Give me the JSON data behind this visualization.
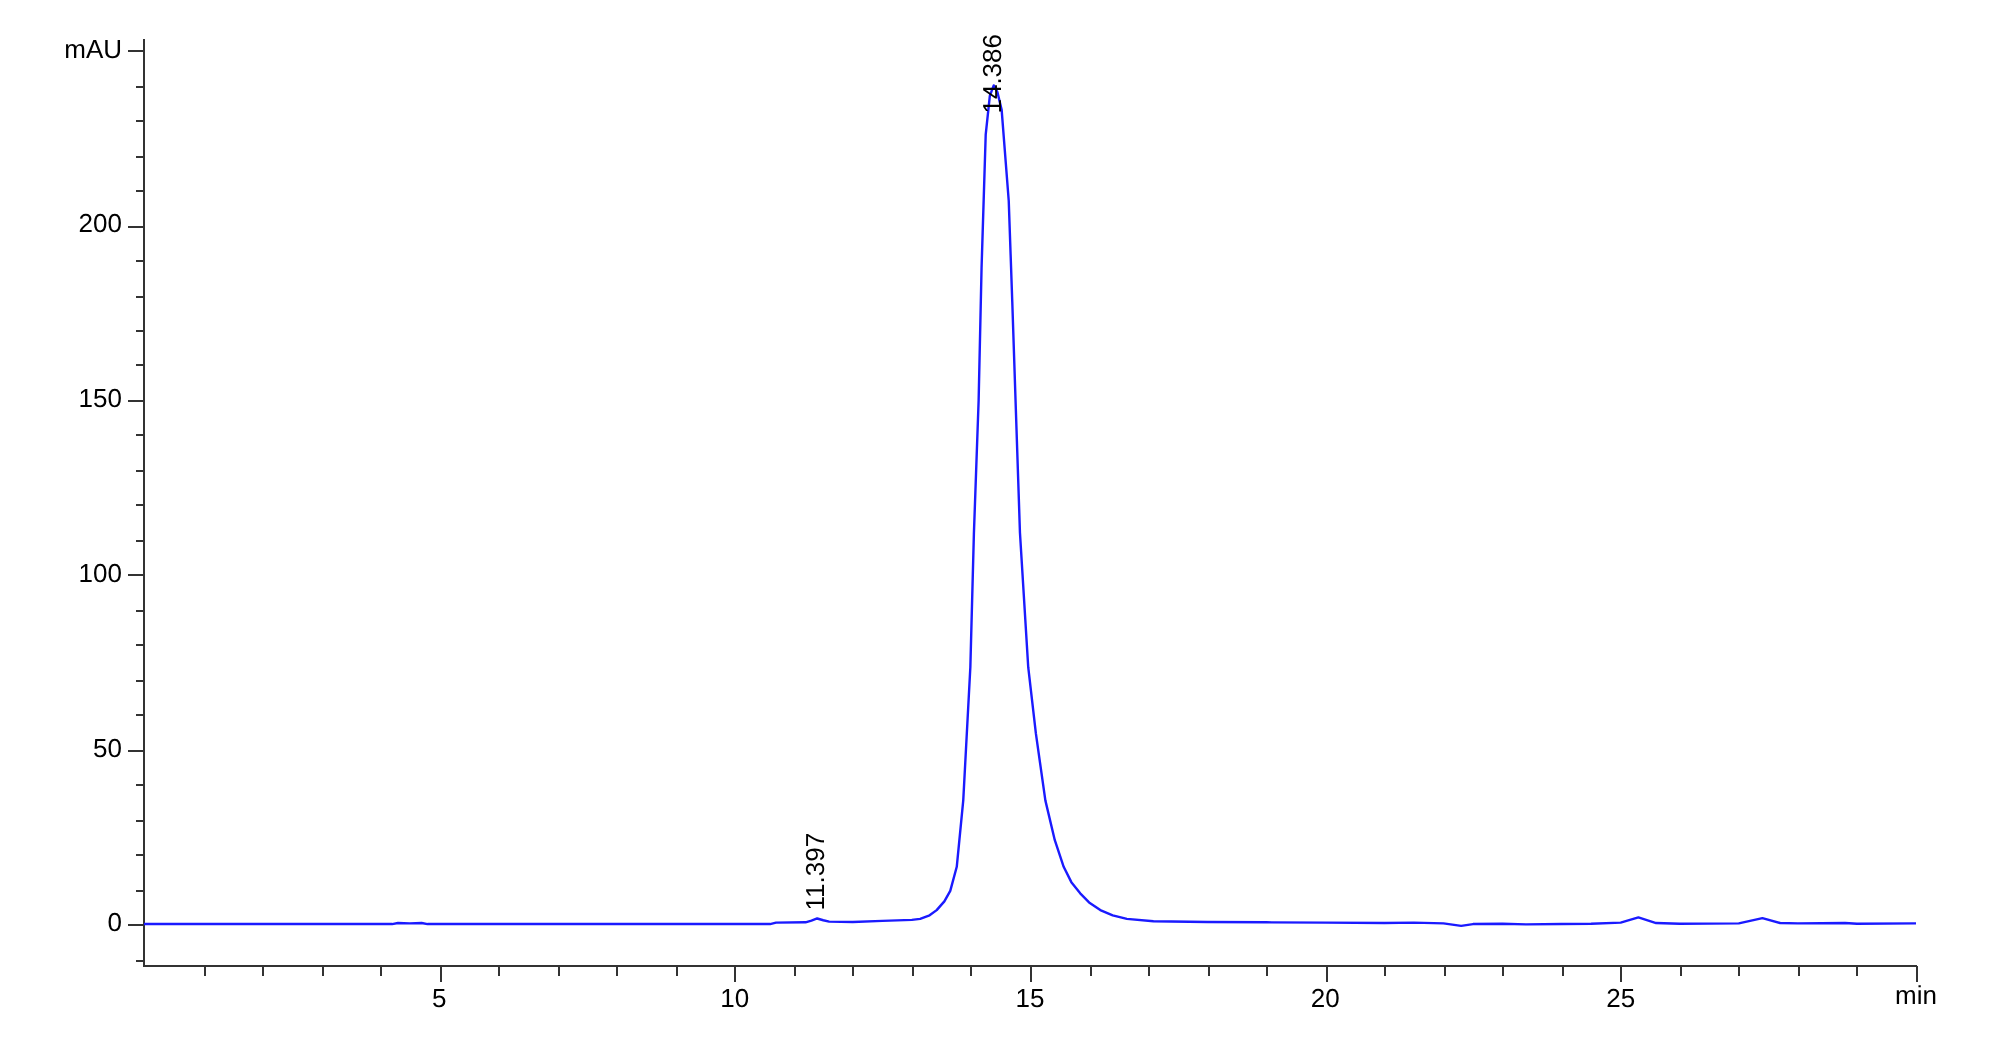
{
  "chart_data": {
    "type": "line",
    "xlabel": "min",
    "ylabel": "mAU",
    "x": [
      0,
      4.2,
      4.3,
      4.5,
      4.7,
      4.8,
      10.6,
      10.7,
      11.2,
      11.3,
      11.397,
      11.5,
      11.6,
      12.0,
      12.5,
      13.0,
      13.14,
      13.3,
      13.42,
      13.55,
      13.65,
      13.76,
      13.87,
      13.99,
      14.05,
      14.13,
      14.18,
      14.25,
      14.32,
      14.386,
      14.45,
      14.52,
      14.64,
      14.7,
      14.755,
      14.83,
      14.97,
      15.1,
      15.26,
      15.42,
      15.57,
      15.7,
      15.85,
      16.0,
      16.19,
      16.4,
      16.64,
      17.09,
      18,
      19,
      20,
      21,
      21.5,
      22.0,
      22.3,
      22.5,
      23.0,
      23.4,
      24.0,
      24.5,
      25.0,
      25.3,
      25.6,
      26.0,
      27.0,
      27.4,
      27.7,
      28.0,
      28.8,
      29.0,
      30.0
    ],
    "values": [
      0,
      0,
      0.3,
      0.2,
      0.3,
      0,
      0,
      0.4,
      0.5,
      1.0,
      1.6,
      1.1,
      0.7,
      0.6,
      0.9,
      1.2,
      1.5,
      2.5,
      4,
      6.5,
      9.5,
      16.4,
      35.4,
      73.5,
      111.6,
      149.7,
      187.8,
      225.9,
      237,
      240,
      238,
      233,
      207,
      178,
      150,
      112,
      73.5,
      54.5,
      35.4,
      24,
      16.4,
      12,
      8.8,
      6.2,
      4,
      2.5,
      1.5,
      0.8,
      0.6,
      0.5,
      0.4,
      0.3,
      0.4,
      0.2,
      -0.5,
      0,
      0.1,
      -0.1,
      0,
      0.1,
      0.4,
      1.9,
      0.3,
      0.1,
      0.2,
      1.7,
      0.3,
      0.2,
      0.3,
      0.1,
      0.2
    ],
    "color": "#1a1aff",
    "xlim": [
      0,
      30
    ],
    "ylim": [
      -12,
      253
    ],
    "xticks": [
      {
        "value": 1,
        "label": null
      },
      {
        "value": 2,
        "label": null
      },
      {
        "value": 3,
        "label": null
      },
      {
        "value": 4,
        "label": null
      },
      5,
      {
        "value": 6,
        "label": null
      },
      {
        "value": 7,
        "label": null
      },
      {
        "value": 8,
        "label": null
      },
      {
        "value": 9,
        "label": null
      },
      10,
      {
        "value": 11,
        "label": null
      },
      {
        "value": 12,
        "label": null
      },
      {
        "value": 13,
        "label": null
      },
      {
        "value": 14,
        "label": null
      },
      15,
      {
        "value": 16,
        "label": null
      },
      {
        "value": 17,
        "label": null
      },
      {
        "value": 18,
        "label": null
      },
      {
        "value": 19,
        "label": null
      },
      20,
      {
        "value": 21,
        "label": null
      },
      {
        "value": 22,
        "label": null
      },
      {
        "value": 23,
        "label": null
      },
      {
        "value": 24,
        "label": null
      },
      25,
      {
        "value": 26,
        "label": null
      },
      {
        "value": 27,
        "label": null
      },
      {
        "value": 28,
        "label": null
      },
      {
        "value": 29,
        "label": null
      },
      {
        "value": 30,
        "label": null
      }
    ],
    "yticks": [
      {
        "value": -10,
        "label": null
      },
      0,
      {
        "value": 10,
        "label": null
      },
      {
        "value": 20,
        "label": null
      },
      {
        "value": 30,
        "label": null
      },
      {
        "value": 40,
        "label": null
      },
      50,
      {
        "value": 60,
        "label": null
      },
      {
        "value": 70,
        "label": null
      },
      {
        "value": 80,
        "label": null
      },
      {
        "value": 90,
        "label": null
      },
      100,
      {
        "value": 110,
        "label": null
      },
      {
        "value": 120,
        "label": null
      },
      {
        "value": 130,
        "label": null
      },
      {
        "value": 140,
        "label": null
      },
      150,
      {
        "value": 160,
        "label": null
      },
      {
        "value": 170,
        "label": null
      },
      {
        "value": 180,
        "label": null
      },
      {
        "value": 190,
        "label": null
      },
      200,
      {
        "value": 210,
        "label": null
      },
      {
        "value": 220,
        "label": null
      },
      {
        "value": 230,
        "label": null
      },
      {
        "value": 240,
        "label": null
      },
      {
        "value": 250,
        "label": null
      }
    ],
    "annotations": [
      {
        "text": "11.397",
        "x": 11.397,
        "y": 1.6
      },
      {
        "text": "14.386",
        "x": 14.386,
        "y": 240
      }
    ]
  }
}
